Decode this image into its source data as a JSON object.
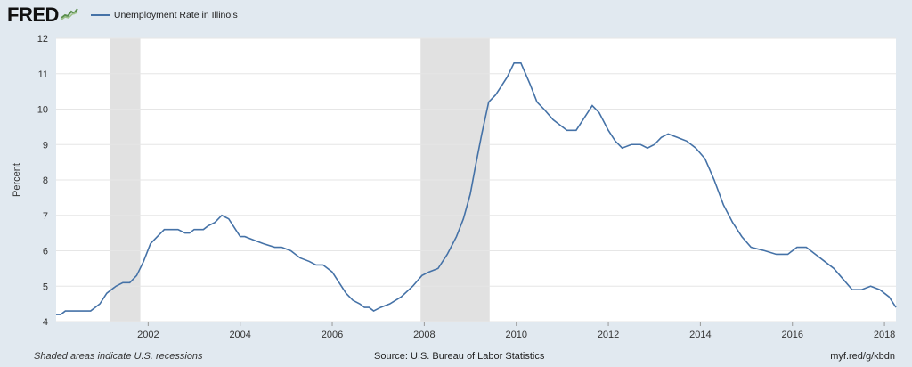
{
  "header": {
    "logo": "FRED",
    "legend_label": "Unemployment Rate in Illinois"
  },
  "footer": {
    "recession_note": "Shaded areas indicate U.S. recessions",
    "source": "Source: U.S. Bureau of Labor Statistics",
    "link": "myf.red/g/kbdn"
  },
  "colors": {
    "line": "#4572a7",
    "recession": "#e1e1e1",
    "background": "#e1e9f0",
    "plot": "#ffffff"
  },
  "chart_data": {
    "type": "line",
    "title": "",
    "xlabel": "",
    "ylabel": "Percent",
    "xlim": [
      2000.0,
      2018.25
    ],
    "ylim": [
      4,
      12
    ],
    "yticks": [
      4,
      5,
      6,
      7,
      8,
      9,
      10,
      11,
      12
    ],
    "xticks": [
      2002,
      2004,
      2006,
      2008,
      2010,
      2012,
      2014,
      2016,
      2018
    ],
    "grid": true,
    "legend": "top-left",
    "recessions": [
      [
        2001.17,
        2001.83
      ],
      [
        2007.92,
        2009.42
      ]
    ],
    "series": [
      {
        "name": "Unemployment Rate in Illinois",
        "x": [
          2000.0,
          2000.1,
          2000.2,
          2000.5,
          2000.75,
          2000.95,
          2001.1,
          2001.3,
          2001.45,
          2001.6,
          2001.75,
          2001.9,
          2002.05,
          2002.2,
          2002.35,
          2002.5,
          2002.65,
          2002.8,
          2002.9,
          2003.0,
          2003.2,
          2003.3,
          2003.45,
          2003.6,
          2003.75,
          2003.9,
          2004.0,
          2004.1,
          2004.3,
          2004.5,
          2004.75,
          2004.9,
          2005.1,
          2005.3,
          2005.5,
          2005.65,
          2005.8,
          2006.0,
          2006.15,
          2006.3,
          2006.45,
          2006.6,
          2006.7,
          2006.8,
          2006.9,
          2007.05,
          2007.25,
          2007.5,
          2007.75,
          2007.95,
          2008.1,
          2008.3,
          2008.5,
          2008.7,
          2008.85,
          2009.0,
          2009.1,
          2009.25,
          2009.4,
          2009.55,
          2009.65,
          2009.8,
          2009.95,
          2010.1,
          2010.2,
          2010.3,
          2010.45,
          2010.6,
          2010.8,
          2011.0,
          2011.1,
          2011.3,
          2011.5,
          2011.65,
          2011.8,
          2012.0,
          2012.15,
          2012.3,
          2012.5,
          2012.7,
          2012.85,
          2013.0,
          2013.15,
          2013.3,
          2013.5,
          2013.7,
          2013.9,
          2014.1,
          2014.3,
          2014.5,
          2014.7,
          2014.9,
          2015.1,
          2015.4,
          2015.65,
          2015.9,
          2016.1,
          2016.3,
          2016.5,
          2016.7,
          2016.9,
          2017.1,
          2017.3,
          2017.5,
          2017.7,
          2017.9,
          2018.1,
          2018.25
        ],
        "values": [
          4.2,
          4.2,
          4.3,
          4.3,
          4.3,
          4.5,
          4.8,
          5.0,
          5.1,
          5.1,
          5.3,
          5.7,
          6.2,
          6.4,
          6.6,
          6.6,
          6.6,
          6.5,
          6.5,
          6.6,
          6.6,
          6.7,
          6.8,
          7.0,
          6.9,
          6.6,
          6.4,
          6.4,
          6.3,
          6.2,
          6.1,
          6.1,
          6.0,
          5.8,
          5.7,
          5.6,
          5.6,
          5.4,
          5.1,
          4.8,
          4.6,
          4.5,
          4.4,
          4.4,
          4.3,
          4.4,
          4.5,
          4.7,
          5.0,
          5.3,
          5.4,
          5.5,
          5.9,
          6.4,
          6.9,
          7.6,
          8.3,
          9.3,
          10.2,
          10.4,
          10.6,
          10.9,
          11.3,
          11.3,
          11.0,
          10.7,
          10.2,
          10.0,
          9.7,
          9.5,
          9.4,
          9.4,
          9.8,
          10.1,
          9.9,
          9.4,
          9.1,
          8.9,
          9.0,
          9.0,
          8.9,
          9.0,
          9.2,
          9.3,
          9.2,
          9.1,
          8.9,
          8.6,
          8.0,
          7.3,
          6.8,
          6.4,
          6.1,
          6.0,
          5.9,
          5.9,
          6.1,
          6.1,
          5.9,
          5.7,
          5.5,
          5.2,
          4.9,
          4.9,
          5.0,
          4.9,
          4.7,
          4.4
        ]
      }
    ]
  }
}
